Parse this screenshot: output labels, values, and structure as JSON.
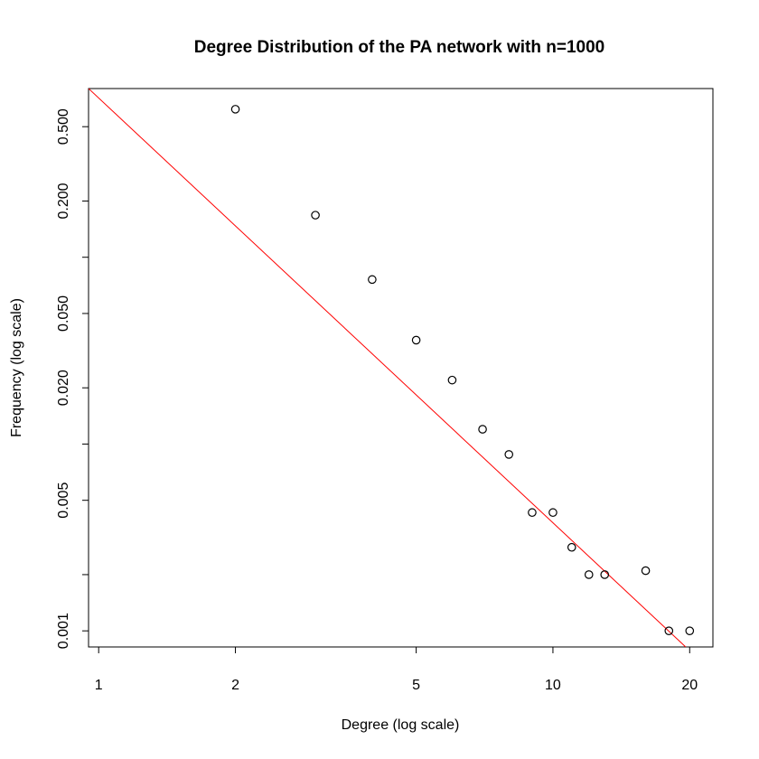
{
  "chart_data": {
    "type": "scatter",
    "title": "Degree Distribution of the PA network with n=1000",
    "xlabel": "Degree (log scale)",
    "ylabel": "Frequency (log scale)",
    "x_scale": "log",
    "y_scale": "log",
    "xlim": [
      0.95,
      22.5
    ],
    "ylim": [
      0.00082,
      0.8
    ],
    "x_ticks": [
      1,
      2,
      5,
      10,
      20
    ],
    "x_tick_labels": [
      "1",
      "2",
      "5",
      "10",
      "20"
    ],
    "y_ticks": [
      0.001,
      0.002,
      0.005,
      0.01,
      0.02,
      0.05,
      0.1,
      0.2,
      0.5
    ],
    "y_tick_labels": [
      "0.001",
      "",
      "0.005",
      "",
      "0.020",
      "0.050",
      "",
      "0.200",
      "0.500"
    ],
    "grid": false,
    "series": [
      {
        "marker": "open-circle",
        "color": "#000000",
        "x": [
          2,
          3,
          4,
          5,
          6,
          7,
          8,
          9,
          10,
          11,
          12,
          13,
          16,
          18,
          20
        ],
        "y": [
          0.62,
          0.168,
          0.076,
          0.036,
          0.022,
          0.012,
          0.0088,
          0.0043,
          0.0043,
          0.0028,
          0.002,
          0.002,
          0.0021,
          0.001,
          0.001
        ]
      }
    ],
    "fit_line": {
      "color": "#ff0000",
      "x": [
        0.95,
        19.6
      ],
      "y": [
        0.8,
        0.00082
      ]
    }
  }
}
